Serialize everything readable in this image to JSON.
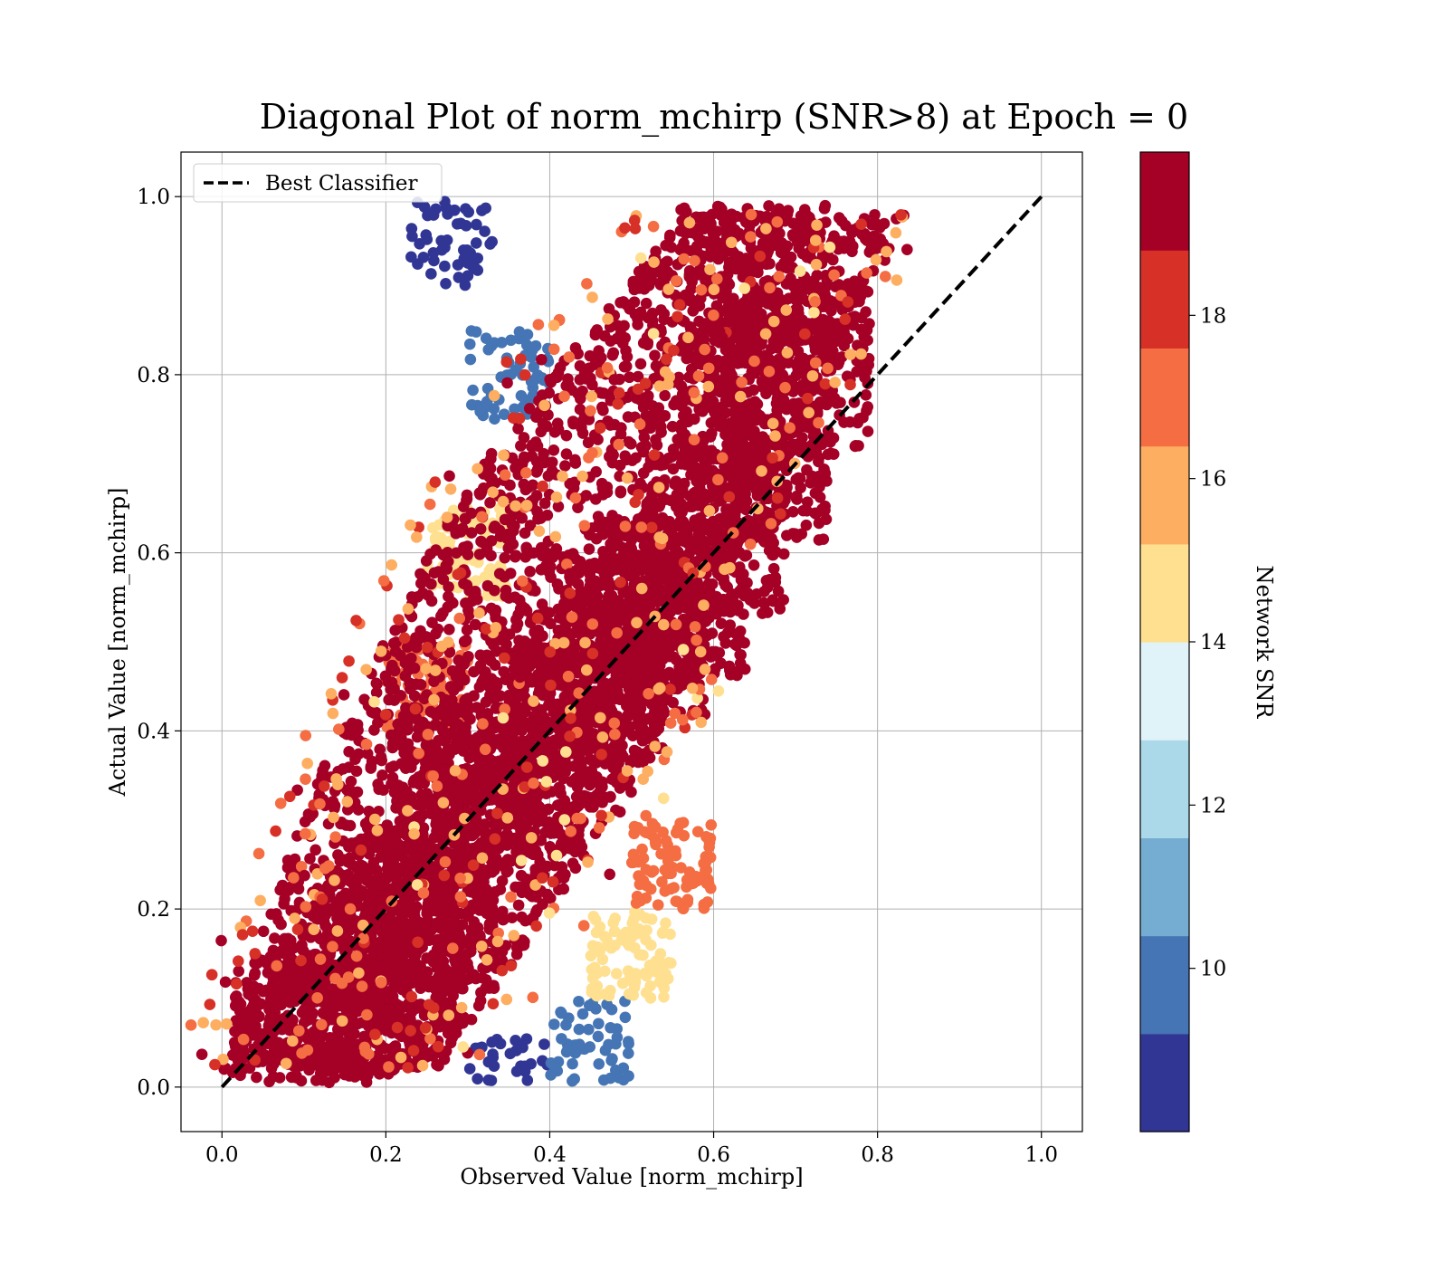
{
  "chart_data": {
    "type": "scatter",
    "title": "Diagonal Plot of norm_mchirp (SNR>8) at Epoch = 0",
    "xlabel": "Observed Value [norm_mchirp]",
    "ylabel": "Actual Value [norm_mchirp]",
    "xlim": [
      -0.05,
      1.05
    ],
    "ylim": [
      -0.05,
      1.05
    ],
    "xticks": [
      "0.0",
      "0.2",
      "0.4",
      "0.6",
      "0.8",
      "1.0"
    ],
    "yticks": [
      "0.0",
      "0.2",
      "0.4",
      "0.6",
      "0.8",
      "1.0"
    ],
    "grid": true,
    "legend": {
      "position": "upper-left",
      "entries": [
        "Best Classifier"
      ]
    },
    "series": [
      {
        "name": "Best Classifier",
        "kind": "line",
        "style": "dashed",
        "color": "#000000",
        "x": [
          0.0,
          1.0
        ],
        "y": [
          0.0,
          1.0
        ]
      },
      {
        "kind": "scatter",
        "color_by": "Network SNR",
        "points": [
          {
            "x": 0.1,
            "y": 0.05,
            "snr": 19.5
          },
          {
            "x": 0.15,
            "y": 0.1,
            "snr": 19.5
          },
          {
            "x": 0.2,
            "y": 0.15,
            "snr": 19.5
          },
          {
            "x": 0.25,
            "y": 0.2,
            "snr": 19.5
          },
          {
            "x": 0.3,
            "y": 0.3,
            "snr": 19.5
          },
          {
            "x": 0.35,
            "y": 0.35,
            "snr": 19.5
          },
          {
            "x": 0.4,
            "y": 0.4,
            "snr": 19.5
          },
          {
            "x": 0.45,
            "y": 0.45,
            "snr": 19.5
          },
          {
            "x": 0.5,
            "y": 0.5,
            "snr": 19.5
          },
          {
            "x": 0.55,
            "y": 0.55,
            "snr": 19.5
          },
          {
            "x": 0.6,
            "y": 0.62,
            "snr": 19.5
          },
          {
            "x": 0.65,
            "y": 0.7,
            "snr": 19.5
          },
          {
            "x": 0.7,
            "y": 0.8,
            "snr": 19.5
          },
          {
            "x": 0.65,
            "y": 0.9,
            "snr": 19.5
          },
          {
            "x": 0.25,
            "y": 0.45,
            "snr": 17.5
          },
          {
            "x": 0.55,
            "y": 0.25,
            "snr": 17.5
          },
          {
            "x": 0.3,
            "y": 0.6,
            "snr": 15.0
          },
          {
            "x": 0.5,
            "y": 0.15,
            "snr": 15.0
          },
          {
            "x": 0.35,
            "y": 0.8,
            "snr": 10.0
          },
          {
            "x": 0.45,
            "y": 0.05,
            "snr": 10.0
          },
          {
            "x": 0.28,
            "y": 0.95,
            "snr": 8.5
          },
          {
            "x": 0.35,
            "y": 0.005,
            "snr": 8.5
          }
        ]
      }
    ],
    "colorbar": {
      "label": "Network SNR",
      "range": [
        8,
        20
      ],
      "ticks": [
        "10",
        "12",
        "14",
        "16",
        "18"
      ],
      "tick_values": [
        10,
        12,
        14,
        16,
        18
      ],
      "colors": [
        "#313695",
        "#4575b4",
        "#74add1",
        "#abd9e9",
        "#e0f3f8",
        "#fee090",
        "#fdae61",
        "#f46d43",
        "#d73027",
        "#a50026"
      ]
    }
  }
}
